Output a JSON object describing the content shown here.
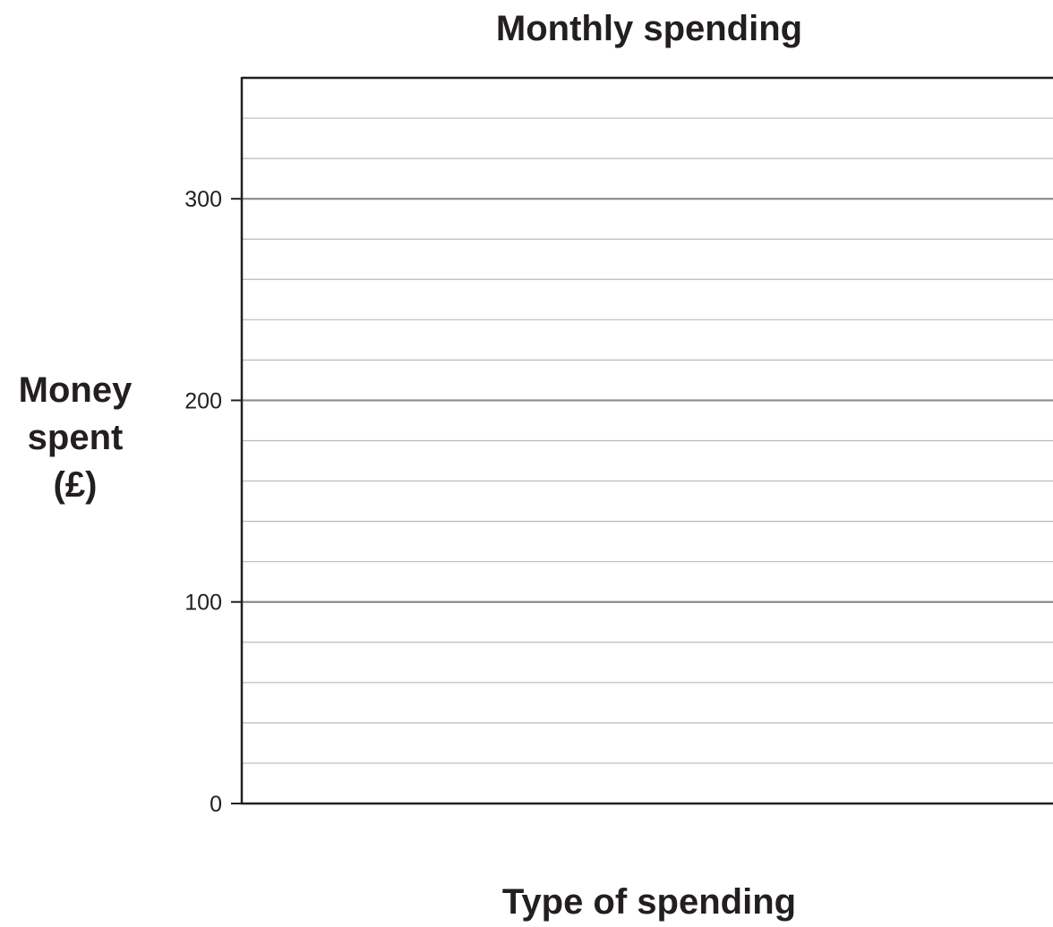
{
  "chart_data": {
    "type": "bar",
    "title": "Monthly spending",
    "xlabel": "Type of spending",
    "ylabel": "Money\nspent\n(£)",
    "categories": [],
    "values": [],
    "ylim": [
      0,
      360
    ],
    "y_ticks": [
      0,
      100,
      200,
      300
    ],
    "minor_grid_step": 20,
    "grid": true
  },
  "colors": {
    "axis": "#231f20",
    "major_grid": "#8a8a8a",
    "minor_grid": "#b9b9b9"
  }
}
